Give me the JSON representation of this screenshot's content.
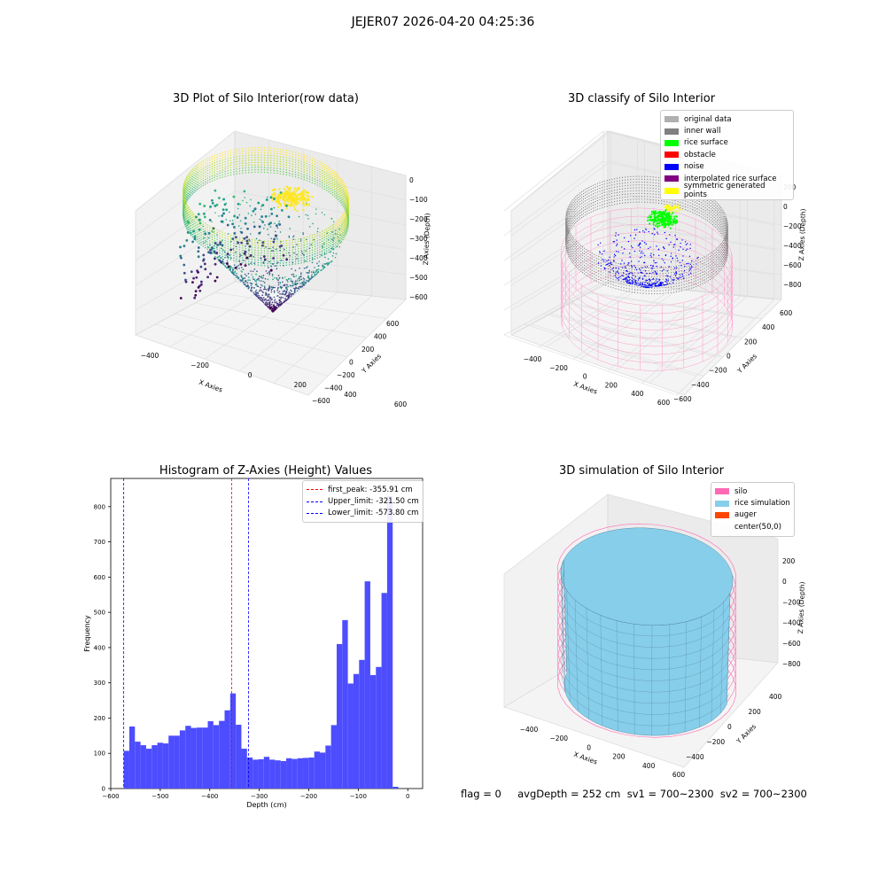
{
  "suptitle": "JEJER07 2026-04-20 04:25:36",
  "colors": {
    "original": "#b0b0b0",
    "inner_wall": "#808080",
    "rice_surface": "#00ff00",
    "obstacle": "#ff0000",
    "noise": "#0000ff",
    "interpolated": "#800080",
    "symmetric": "#ffff00",
    "silo": "#ff69b4",
    "rice_sim": "#87ceeb",
    "auger": "#ff4500",
    "hist_bar": "#4d4dff"
  },
  "panel1": {
    "title": "3D Plot of Silo Interior(row data)",
    "xlabel": "X Axies",
    "ylabel": "Y Axies",
    "zlabel": "Z Axies (Depth)",
    "xticks": [
      "−400",
      "−200",
      "0",
      "200",
      "400",
      "600"
    ],
    "yticks": [
      "−600",
      "−400",
      "−200",
      "0",
      "200",
      "400",
      "600"
    ],
    "zticks": [
      "0",
      "−100",
      "−200",
      "−300",
      "−400",
      "−500",
      "−600"
    ]
  },
  "panel2": {
    "title": "3D classify of Silo Interior",
    "xlabel": "X Axies",
    "ylabel": "Y Axies",
    "zlabel": "Z Axies (Depth)",
    "xticks": [
      "−400",
      "−200",
      "0",
      "200",
      "400",
      "600"
    ],
    "yticks": [
      "−600",
      "−400",
      "−200",
      "0",
      "200",
      "400",
      "600"
    ],
    "zticks": [
      "200",
      "0",
      "−200",
      "−400",
      "−600",
      "−800"
    ],
    "legend": [
      {
        "label": "original data",
        "color": "#b0b0b0"
      },
      {
        "label": "inner wall",
        "color": "#808080"
      },
      {
        "label": "rice surface",
        "color": "#00ff00"
      },
      {
        "label": "obstacle",
        "color": "#ff0000"
      },
      {
        "label": "noise",
        "color": "#0000ff"
      },
      {
        "label": "interpolated rice surface",
        "color": "#800080"
      },
      {
        "label": "symmetric generated points",
        "color": "#ffff00"
      }
    ]
  },
  "panel4": {
    "title": "3D simulation of Silo Interior",
    "xlabel": "X Axies",
    "ylabel": "Y Axies",
    "zlabel": "Z Axies (Depth)",
    "xticks": [
      "−400",
      "−200",
      "0",
      "200",
      "400",
      "600"
    ],
    "yticks": [
      "−400",
      "−200",
      "0",
      "200",
      "400"
    ],
    "zticks": [
      "200",
      "0",
      "−200",
      "−400",
      "−600",
      "−800"
    ],
    "legend": [
      {
        "label": "silo",
        "color": "#ff69b4"
      },
      {
        "label": "rice simulation",
        "color": "#87ceeb"
      },
      {
        "label": "auger",
        "color": "#ff4500"
      },
      {
        "label": "center(50,0)",
        "color": "transparent"
      }
    ]
  },
  "footer": "flag = 0     avgDepth = 252 cm  sv1 = 700~2300  sv2 = 700~2300",
  "chart_data": [
    {
      "type": "scatter",
      "title": "3D Plot of Silo Interior(row data)",
      "xlabel": "X Axies",
      "ylabel": "Y Axies",
      "zlabel": "Z Axies (Depth)",
      "xlim": [
        -500,
        650
      ],
      "ylim": [
        -650,
        650
      ],
      "zlim": [
        -620,
        20
      ]
    },
    {
      "type": "scatter",
      "title": "3D classify of Silo Interior",
      "xlabel": "X Axies",
      "ylabel": "Y Axies",
      "zlabel": "Z Axies (Depth)",
      "legend_position": "top-right"
    },
    {
      "type": "bar",
      "title": "Histogram of Z-Axies (Height) Values",
      "xlabel": "Depth (cm)",
      "ylabel": "Frequency",
      "xlim": [
        -600,
        30
      ],
      "ylim": [
        0,
        880
      ],
      "xticks": [
        -600,
        -500,
        -400,
        -300,
        -200,
        -100,
        0
      ],
      "yticks": [
        0,
        100,
        200,
        300,
        400,
        500,
        600,
        700,
        800
      ],
      "bin_start": -573.8,
      "bin_width": 11.32,
      "values": [
        107,
        176,
        133,
        123,
        113,
        123,
        130,
        128,
        150,
        150,
        165,
        178,
        172,
        173,
        173,
        191,
        180,
        192,
        222,
        270,
        181,
        113,
        88,
        82,
        83,
        90,
        82,
        80,
        78,
        86,
        84,
        86,
        87,
        88,
        105,
        102,
        122,
        180,
        410,
        478,
        298,
        325,
        365,
        588,
        322,
        345,
        555,
        830,
        5
      ],
      "vlines": [
        {
          "label": "first_peak: -355.91 cm",
          "x": -355.91,
          "color": "#ff0000"
        },
        {
          "label": "Upper_limit: -321.50 cm",
          "x": -321.5,
          "color": "#0000ff"
        },
        {
          "label": "Lower_limit: -573.80 cm",
          "x": -573.8,
          "color": "#0000ff"
        }
      ],
      "legend_position": "top-right"
    },
    {
      "type": "area",
      "title": "3D simulation of Silo Interior",
      "xlabel": "X Axies",
      "ylabel": "Y Axies",
      "zlabel": "Z Axies (Depth)",
      "legend_position": "top-right"
    }
  ]
}
